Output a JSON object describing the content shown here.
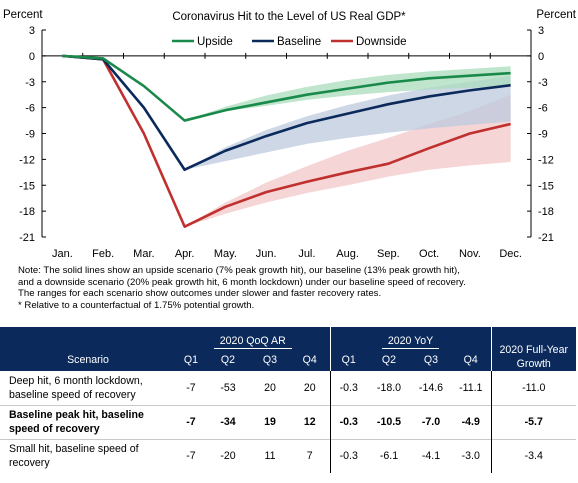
{
  "chart_data": {
    "type": "line",
    "title": "Coronavirus  Hit to the Level of US Real GDP*",
    "ylabel_left": "Percent",
    "ylabel_right": "Percent",
    "ylim": [
      -21,
      3
    ],
    "yticks": [
      3,
      0,
      -3,
      -6,
      -9,
      -12,
      -15,
      -18,
      -21
    ],
    "categories": [
      "Jan.",
      "Feb.",
      "Mar.",
      "Apr.",
      "May.",
      "Jun.",
      "Jul.",
      "Aug.",
      "Sep.",
      "Oct.",
      "Nov.",
      "Dec."
    ],
    "grid": false,
    "legend_placement": "top-right",
    "series": [
      {
        "name": "Upside",
        "color": "#1a8a4a",
        "band_color": "#a9dcbc",
        "values": [
          0,
          -0.3,
          -3.5,
          -7.5,
          -6.3,
          -5.4,
          -4.5,
          -3.8,
          -3.1,
          -2.6,
          -2.3,
          -2.0
        ],
        "band_low": [
          null,
          null,
          null,
          -7.5,
          -6.4,
          -5.8,
          -5.1,
          -4.6,
          -4.2,
          -3.9,
          -3.7,
          -3.5
        ],
        "band_high": [
          null,
          null,
          null,
          -7.5,
          -5.9,
          -4.6,
          -3.6,
          -2.8,
          -2.2,
          -1.8,
          -1.5,
          -1.2
        ]
      },
      {
        "name": "Baseline",
        "color": "#0b2a5b",
        "band_color": "#bcc9dd",
        "values": [
          0,
          -0.4,
          -6.0,
          -13.2,
          -11.0,
          -9.3,
          -7.8,
          -6.7,
          -5.6,
          -4.7,
          -4.0,
          -3.4
        ],
        "band_low": [
          null,
          null,
          null,
          -13.2,
          -12.2,
          -11.2,
          -10.2,
          -9.5,
          -8.9,
          -8.4,
          -8.0,
          -7.6
        ],
        "band_high": [
          null,
          null,
          null,
          -13.2,
          -10.6,
          -8.6,
          -7.0,
          -5.7,
          -4.6,
          -3.7,
          -3.0,
          -2.3
        ]
      },
      {
        "name": "Downside",
        "color": "#c0302f",
        "band_color": "#f2c7c7",
        "values": [
          0,
          -0.4,
          -9.0,
          -19.8,
          -17.5,
          -15.8,
          -14.6,
          -13.5,
          -12.5,
          -10.7,
          -9.0,
          -7.9
        ],
        "band_low": [
          null,
          null,
          null,
          -19.8,
          -18.3,
          -17.0,
          -15.9,
          -15.0,
          -14.0,
          -13.2,
          -12.7,
          -12.3
        ],
        "band_high": [
          null,
          null,
          null,
          -19.8,
          -17.0,
          -14.7,
          -12.8,
          -11.0,
          -9.5,
          -7.9,
          -6.4,
          -4.5
        ]
      }
    ]
  },
  "note": {
    "lines": [
      "Note: The solid lines show an upside scenario (7% peak growth hit), our baseline (13% peak growth hit),",
      "and a downside scenario (20% peak growth hit, 6 month lockdown) under our baseline  speed of recovery.",
      "The ranges for each scenario show outcomes under slower and faster recovery rates.",
      "* Relative  to a counterfactual of 1.75% potential growth."
    ]
  },
  "table": {
    "group_qoq": "2020 QoQ AR",
    "group_yoy": "2020 YoY",
    "full_year": "2020 Full-Year Growth",
    "scenario_header": "Scenario",
    "quarters": [
      "Q1",
      "Q2",
      "Q3",
      "Q4"
    ],
    "rows": [
      {
        "name": "Deep hit, 6 month lockdown, baseline speed of recovery",
        "qoq": [
          "-7",
          "-53",
          "20",
          "20"
        ],
        "yoy": [
          "-0.3",
          "-18.0",
          "-14.6",
          "-11.1"
        ],
        "full": "-11.0",
        "bold": false
      },
      {
        "name": "Baseline peak hit, baseline speed of recovery",
        "qoq": [
          "-7",
          "-34",
          "19",
          "12"
        ],
        "yoy": [
          "-0.3",
          "-10.5",
          "-7.0",
          "-4.9"
        ],
        "full": "-5.7",
        "bold": true
      },
      {
        "name": "Small hit, baseline speed of recovery",
        "qoq": [
          "-7",
          "-20",
          "11",
          "7"
        ],
        "yoy": [
          "-0.3",
          "-6.1",
          "-4.1",
          "-3.0"
        ],
        "full": "-3.4",
        "bold": false
      }
    ]
  }
}
